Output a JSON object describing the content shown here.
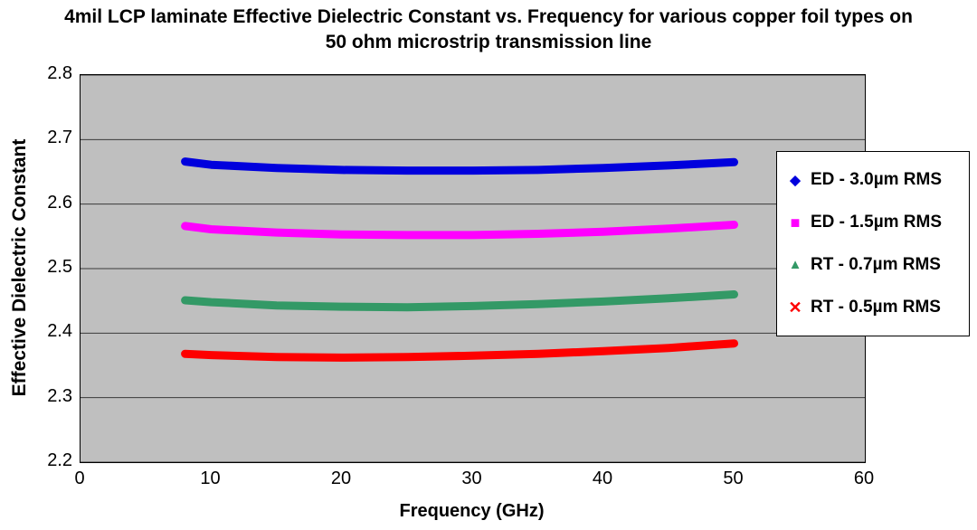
{
  "chart_data": {
    "type": "line",
    "title": "4mil LCP laminate Effective Dielectric Constant vs. Frequency for various copper foil types on 50 ohm microstrip transmission line",
    "xlabel": "Frequency (GHz)",
    "ylabel": "Effective Dielectric Constant",
    "xlim": [
      0,
      60
    ],
    "ylim": [
      2.2,
      2.8
    ],
    "x_ticks": [
      0,
      10,
      20,
      30,
      40,
      50,
      60
    ],
    "y_ticks": [
      2.2,
      2.3,
      2.4,
      2.5,
      2.6,
      2.7,
      2.8
    ],
    "grid": true,
    "plot_bg": "#bfbfbf",
    "gridline_color": "#3a3a3a",
    "legend_position": "right-overlay",
    "x": [
      8,
      10,
      15,
      20,
      25,
      30,
      35,
      40,
      45,
      50
    ],
    "series": [
      {
        "name": "ED - 3.0µm RMS",
        "color": "#0000dd",
        "marker": "diamond",
        "values": [
          2.666,
          2.661,
          2.656,
          2.653,
          2.652,
          2.652,
          2.653,
          2.656,
          2.66,
          2.665
        ]
      },
      {
        "name": "ED - 1.5µm RMS",
        "color": "#ff00ff",
        "marker": "square",
        "values": [
          2.566,
          2.561,
          2.556,
          2.553,
          2.552,
          2.552,
          2.554,
          2.557,
          2.562,
          2.568
        ]
      },
      {
        "name": "RT - 0.7µm RMS",
        "color": "#339966",
        "marker": "triangle",
        "values": [
          2.451,
          2.448,
          2.443,
          2.441,
          2.44,
          2.442,
          2.445,
          2.449,
          2.454,
          2.46
        ]
      },
      {
        "name": "RT - 0.5µm RMS",
        "color": "#fe0000",
        "marker": "x",
        "values": [
          2.368,
          2.366,
          2.363,
          2.362,
          2.363,
          2.365,
          2.368,
          2.372,
          2.377,
          2.384
        ]
      }
    ]
  }
}
